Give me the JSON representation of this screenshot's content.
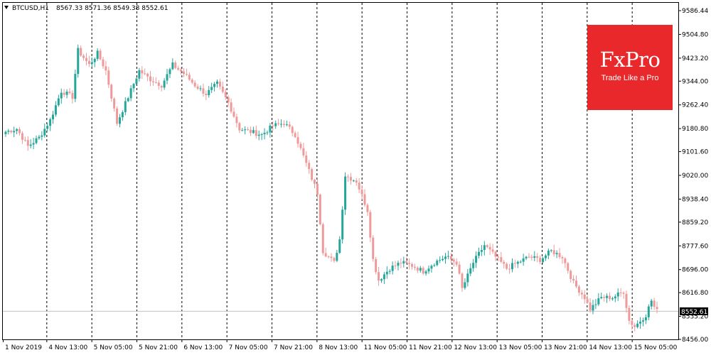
{
  "header": {
    "symbol": "BTCUSD,H1",
    "ohlc": "8567.33 8571.36 8549.38 8552.61"
  },
  "logo": {
    "brand": "FxPro",
    "tagline": "Trade Like a Pro"
  },
  "colors": {
    "bull": "#26a69a",
    "bear": "#ef9a9a",
    "grid": "#000000",
    "current_line": "#c0c0c0",
    "current_label_bg": "#000000",
    "logo_bg": "#e8282b"
  },
  "chart_data": {
    "type": "candlestick",
    "title": "BTCUSD,H1",
    "ylim": [
      8456.0,
      9586.44
    ],
    "y_ticks": [
      "9586.44",
      "9504.80",
      "9423.20",
      "9344.00",
      "9262.40",
      "9180.80",
      "9101.60",
      "9020.00",
      "8938.40",
      "8859.20",
      "8777.60",
      "8696.00",
      "8616.80",
      "8535.20",
      "8456.00"
    ],
    "x_ticks": [
      "1 Nov 2019",
      "4 Nov 13:00",
      "5 Nov 05:00",
      "5 Nov 21:00",
      "6 Nov 13:00",
      "7 Nov 05:00",
      "7 Nov 21:00",
      "8 Nov 13:00",
      "11 Nov 05:00",
      "11 Nov 21:00",
      "12 Nov 13:00",
      "13 Nov 05:00",
      "13 Nov 21:00",
      "14 Nov 13:00",
      "15 Nov 05:00"
    ],
    "current_price": 8552.61,
    "current_price_label": "8552.61",
    "grid": "vertical dashed",
    "key_closes": [
      [
        0,
        9170
      ],
      [
        4,
        9180
      ],
      [
        8,
        9120
      ],
      [
        12,
        9150
      ],
      [
        16,
        9210
      ],
      [
        20,
        9310
      ],
      [
        24,
        9290
      ],
      [
        26,
        9450
      ],
      [
        30,
        9400
      ],
      [
        33,
        9440
      ],
      [
        36,
        9380
      ],
      [
        40,
        9200
      ],
      [
        44,
        9290
      ],
      [
        48,
        9380
      ],
      [
        52,
        9350
      ],
      [
        56,
        9330
      ],
      [
        60,
        9400
      ],
      [
        64,
        9370
      ],
      [
        68,
        9330
      ],
      [
        72,
        9300
      ],
      [
        76,
        9335
      ],
      [
        80,
        9270
      ],
      [
        84,
        9180
      ],
      [
        88,
        9170
      ],
      [
        92,
        9160
      ],
      [
        96,
        9190
      ],
      [
        100,
        9200
      ],
      [
        104,
        9160
      ],
      [
        108,
        9060
      ],
      [
        112,
        8960
      ],
      [
        114,
        8760
      ],
      [
        118,
        8720
      ],
      [
        120,
        8800
      ],
      [
        122,
        9020
      ],
      [
        126,
        9000
      ],
      [
        130,
        8900
      ],
      [
        132,
        8730
      ],
      [
        134,
        8660
      ],
      [
        138,
        8700
      ],
      [
        142,
        8720
      ],
      [
        146,
        8710
      ],
      [
        150,
        8690
      ],
      [
        154,
        8720
      ],
      [
        158,
        8740
      ],
      [
        162,
        8720
      ],
      [
        164,
        8630
      ],
      [
        168,
        8720
      ],
      [
        172,
        8780
      ],
      [
        176,
        8740
      ],
      [
        180,
        8700
      ],
      [
        184,
        8720
      ],
      [
        188,
        8740
      ],
      [
        192,
        8730
      ],
      [
        196,
        8760
      ],
      [
        200,
        8740
      ],
      [
        204,
        8650
      ],
      [
        208,
        8600
      ],
      [
        210,
        8560
      ],
      [
        214,
        8600
      ],
      [
        218,
        8600
      ],
      [
        222,
        8620
      ],
      [
        224,
        8520
      ],
      [
        226,
        8500
      ],
      [
        230,
        8540
      ],
      [
        232,
        8590
      ],
      [
        233,
        8567
      ],
      [
        234,
        8553
      ]
    ]
  }
}
